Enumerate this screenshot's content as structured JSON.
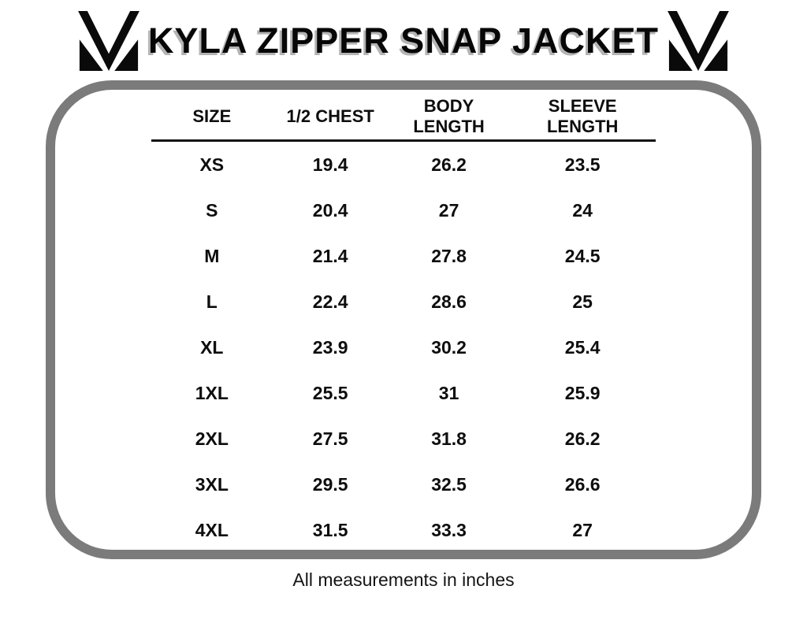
{
  "header": {
    "title": "KYLA ZIPPER SNAP JACKET",
    "logo_icon": "brand-m-logo"
  },
  "panel": {
    "border_color": "#7b7b7b"
  },
  "footer": {
    "note": "All measurements in inches"
  },
  "colors": {
    "text": "#0d0d0d",
    "title_shadow": "#b4b4b4",
    "panel_border": "#7b7b7b"
  },
  "chart_data": {
    "type": "table",
    "title": "KYLA ZIPPER SNAP JACKET",
    "columns": [
      "SIZE",
      "1/2 CHEST",
      "BODY LENGTH",
      "SLEEVE LENGTH"
    ],
    "columns_display": [
      "SIZE",
      "1/2 CHEST",
      "BODY\nLENGTH",
      "SLEEVE\nLENGTH"
    ],
    "rows": [
      [
        "XS",
        "19.4",
        "26.2",
        "23.5"
      ],
      [
        "S",
        "20.4",
        "27",
        "24"
      ],
      [
        "M",
        "21.4",
        "27.8",
        "24.5"
      ],
      [
        "L",
        "22.4",
        "28.6",
        "25"
      ],
      [
        "XL",
        "23.9",
        "30.2",
        "25.4"
      ],
      [
        "1XL",
        "25.5",
        "31",
        "25.9"
      ],
      [
        "2XL",
        "27.5",
        "31.8",
        "26.2"
      ],
      [
        "3XL",
        "29.5",
        "32.5",
        "26.6"
      ],
      [
        "4XL",
        "31.5",
        "33.3",
        "27"
      ]
    ],
    "note": "All measurements in inches",
    "units": "inches"
  }
}
